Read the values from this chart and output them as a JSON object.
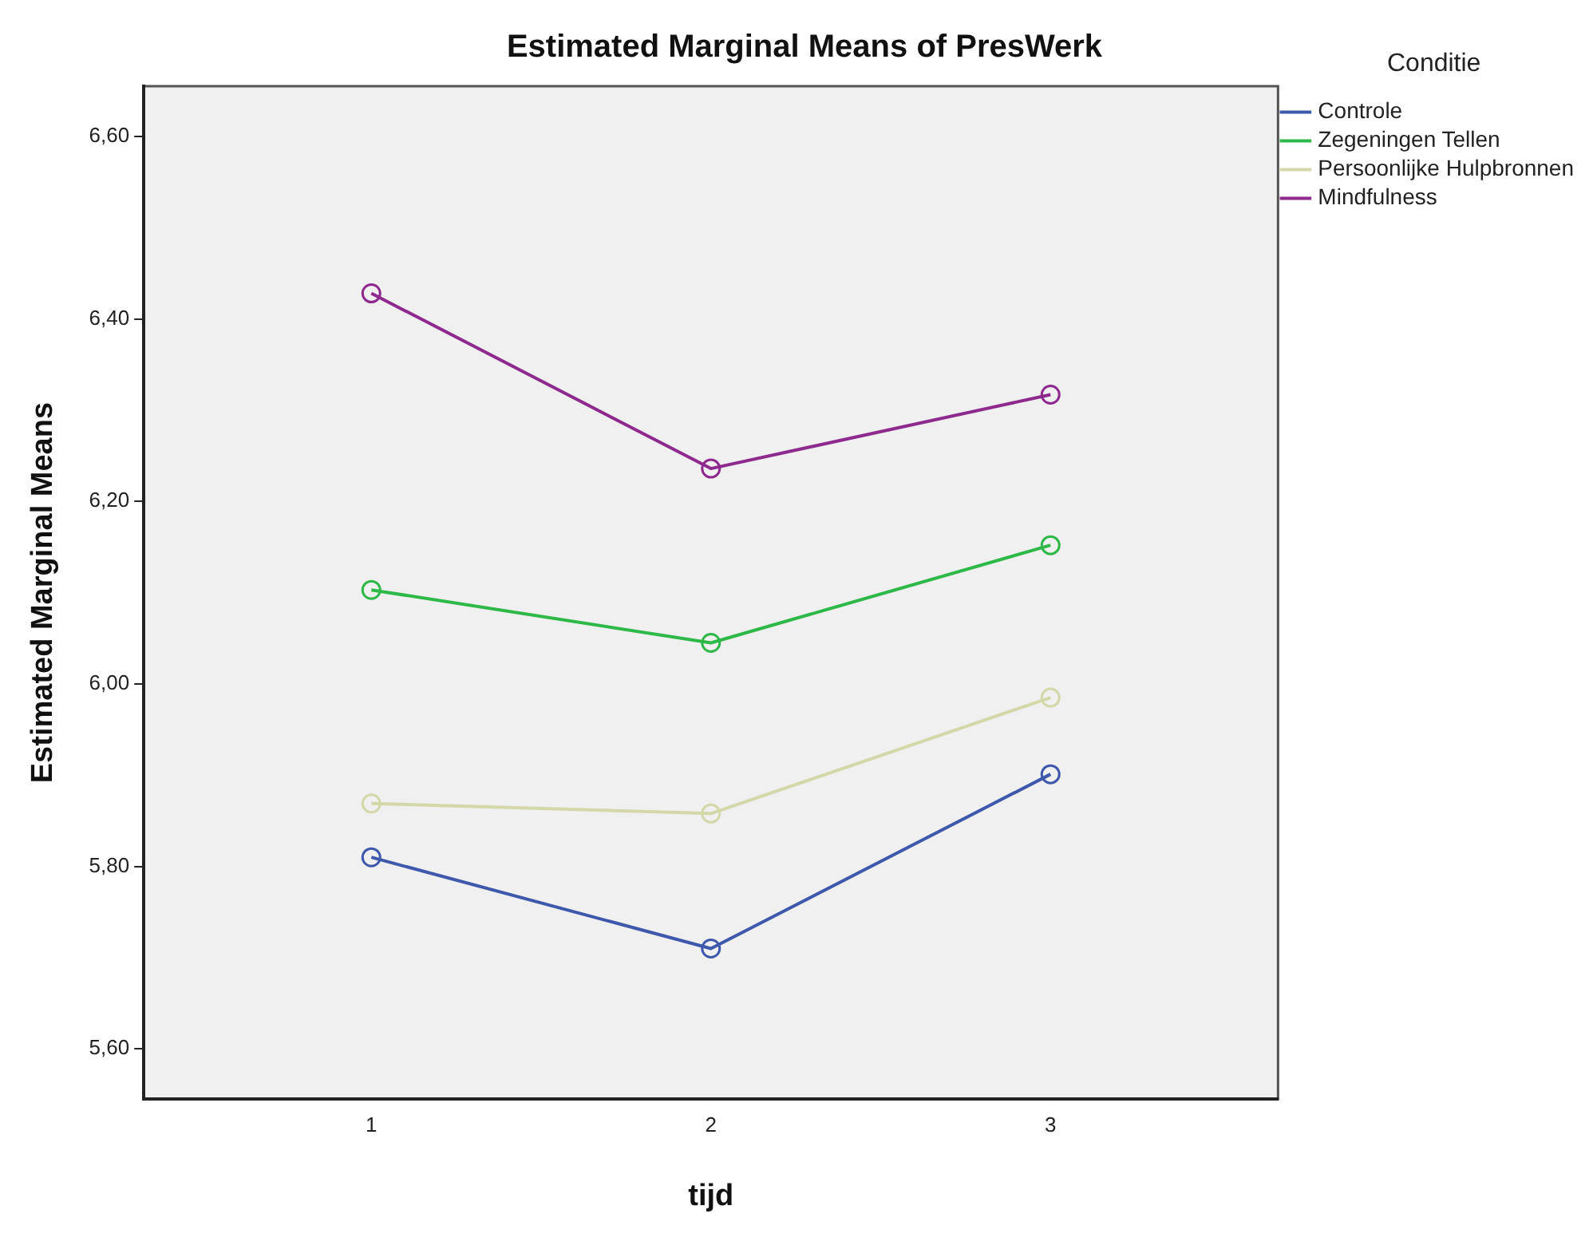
{
  "chart_data": {
    "type": "line",
    "title": "Estimated Marginal Means of PresWerk",
    "xlabel": "tijd",
    "ylabel": "Estimated Marginal Means",
    "legend_title": "Conditie",
    "legend": "right",
    "marker": "circle",
    "line_style": "solid",
    "grid": false,
    "x": [
      1,
      2,
      3
    ],
    "xlim": [
      0.33,
      3.67
    ],
    "xticks": [
      1,
      2,
      3
    ],
    "ylim": [
      5.545,
      6.655
    ],
    "yticks": [
      {
        "value": 5.6,
        "label": "5,60"
      },
      {
        "value": 5.8,
        "label": "5,80"
      },
      {
        "value": 6.0,
        "label": "6,00"
      },
      {
        "value": 6.2,
        "label": "6,20"
      },
      {
        "value": 6.4,
        "label": "6,40"
      },
      {
        "value": 6.6,
        "label": "6,60"
      }
    ],
    "series": [
      {
        "name": "Controle",
        "color": "#3e58ac",
        "values": [
          5.81,
          5.71,
          5.901
        ]
      },
      {
        "name": "Zegeningen Tellen",
        "color": "#2eb848",
        "values": [
          6.103,
          6.045,
          6.152
        ]
      },
      {
        "name": "Persoonlijke Hulpbronnen",
        "color": "#d4d8a8",
        "values": [
          5.869,
          5.858,
          5.985
        ]
      },
      {
        "name": "Mindfulness",
        "color": "#8e2a8e",
        "values": [
          6.428,
          6.236,
          6.317
        ]
      }
    ]
  }
}
